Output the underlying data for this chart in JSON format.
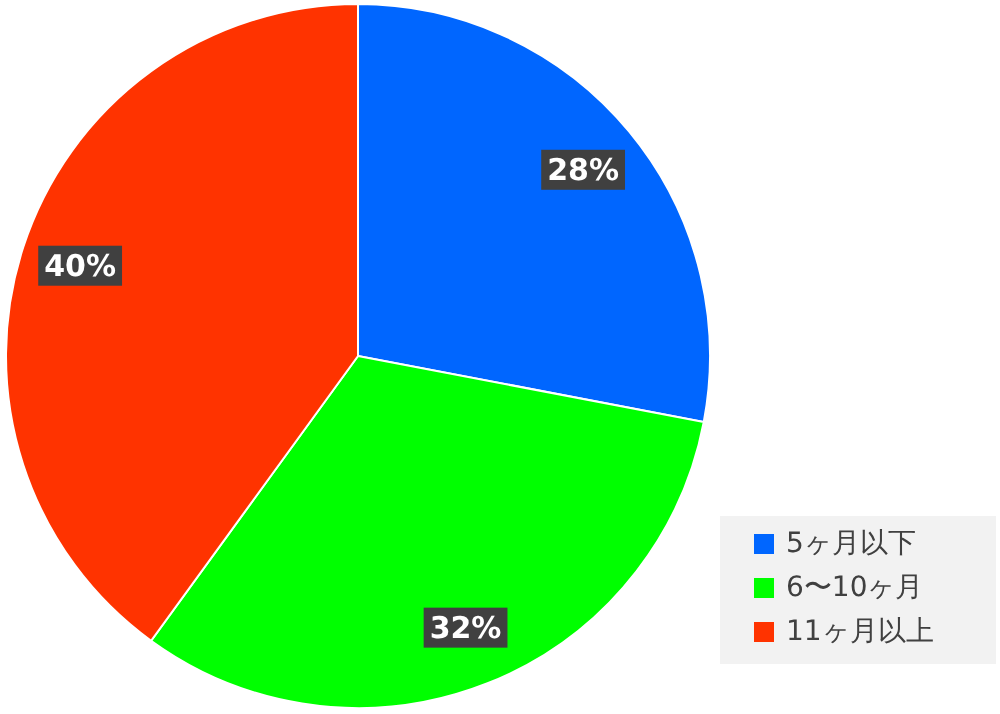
{
  "chart_data": {
    "type": "pie",
    "categories": [
      "5ヶ月以下",
      "6〜10ヶ月",
      "11ヶ月以上"
    ],
    "values": [
      28,
      32,
      40
    ],
    "colors": [
      "#0066ff",
      "#00ff00",
      "#ff3300"
    ],
    "value_labels": [
      "28%",
      "32%",
      "40%"
    ],
    "legend": "bottom right"
  }
}
